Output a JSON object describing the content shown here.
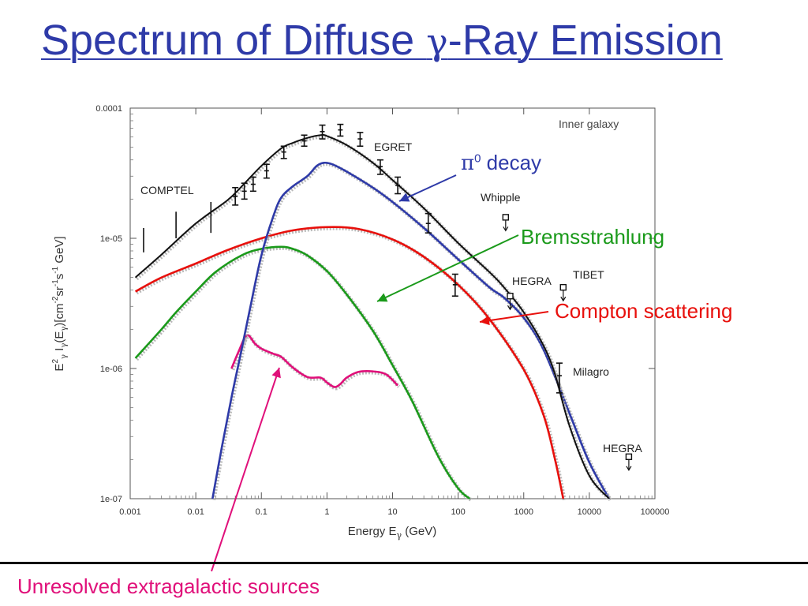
{
  "slide": {
    "title_before": "Spectrum of Diffuse ",
    "title_symbol": "γ",
    "title_after": "-Ray Emission"
  },
  "annotations": {
    "pi0_symbol": "π",
    "pi0_superscript": "0",
    "pi0_text": " decay",
    "bremsstrahlung": "Bremsstrahlung",
    "compton": "Compton scattering",
    "unresolved": "Unresolved extragalactic sources"
  },
  "colors": {
    "title": "#2e3aa8",
    "total": "#111111",
    "pi0": "#2e3aa8",
    "compton": "#e8100c",
    "brems": "#1a9a1a",
    "unresolved": "#e0107a"
  },
  "chart_data": {
    "type": "line",
    "xlabel": "Energy E",
    "xlabel_sub": "γ",
    "xlabel_unit": " (GeV)",
    "ylabel_pre": "E",
    "ylabel_sup": "2",
    "ylabel_sub": "γ",
    "ylabel_mid": " I",
    "ylabel_sub2": "γ",
    "ylabel_post": "(E",
    "ylabel_post2": ")[cm",
    "ylabel_exp1": "-2",
    "ylabel_sr": "sr",
    "ylabel_exp2": "-1",
    "ylabel_s": "s",
    "ylabel_exp3": "-1",
    "ylabel_end": " GeV]",
    "xscale": "log",
    "yscale": "log",
    "xlim": [
      0.001,
      100000
    ],
    "ylim": [
      1e-07,
      0.0001
    ],
    "x_ticks": [
      {
        "value": 0.001,
        "label": "0.001"
      },
      {
        "value": 0.01,
        "label": "0.01"
      },
      {
        "value": 0.1,
        "label": "0.1"
      },
      {
        "value": 1,
        "label": "1"
      },
      {
        "value": 10,
        "label": "10"
      },
      {
        "value": 100,
        "label": "100"
      },
      {
        "value": 1000,
        "label": "1000"
      },
      {
        "value": 10000,
        "label": "10000"
      },
      {
        "value": 100000,
        "label": "100000"
      }
    ],
    "y_ticks": [
      {
        "value": 0.0001,
        "label": "0.0001"
      },
      {
        "value": 1e-05,
        "label": "1e-05"
      },
      {
        "value": 1e-06,
        "label": "1e-06"
      },
      {
        "value": 1e-07,
        "label": "1e-07"
      }
    ],
    "grid": false,
    "panel_label": "Inner galaxy",
    "series": [
      {
        "name": "Total",
        "key": "total",
        "x": [
          0.0012,
          0.003,
          0.01,
          0.03,
          0.05,
          0.1,
          0.2,
          0.3,
          0.5,
          0.8,
          1,
          2,
          5,
          10,
          30,
          100,
          300,
          500,
          1000,
          2000,
          3000,
          5000,
          10000,
          20000
        ],
        "y": [
          5e-06,
          7.5e-06,
          1.3e-05,
          1.95e-05,
          2.5e-05,
          3.6e-05,
          4.9e-05,
          5.4e-05,
          5.9e-05,
          6.2e-05,
          6.1e-05,
          5.2e-05,
          3.8e-05,
          2.8e-05,
          1.7e-05,
          9.2e-06,
          5.5e-06,
          4.2e-06,
          2.7e-06,
          1.5e-06,
          9e-07,
          3.6e-07,
          1.5e-07,
          1e-07
        ]
      },
      {
        "name": "π0 decay",
        "key": "pi0",
        "x": [
          0.018,
          0.025,
          0.035,
          0.05,
          0.07,
          0.1,
          0.15,
          0.2,
          0.3,
          0.5,
          0.7,
          0.9,
          1.2,
          2,
          5,
          10,
          30,
          100,
          300,
          500,
          1000,
          2000,
          5000,
          10000,
          20000
        ],
        "y": [
          1e-07,
          2.5e-07,
          6e-07,
          1.4e-06,
          3.2e-06,
          7.4e-06,
          1.45e-05,
          2.05e-05,
          2.5e-05,
          3e-05,
          3.6e-05,
          3.8e-05,
          3.7e-05,
          3.25e-05,
          2.45e-05,
          1.9e-05,
          1.2e-05,
          6.9e-06,
          4.2e-06,
          3.5e-06,
          2.45e-06,
          1.4e-06,
          4.5e-07,
          1.9e-07,
          1e-07
        ]
      },
      {
        "name": "Compton scattering",
        "key": "compton",
        "x": [
          0.0012,
          0.003,
          0.01,
          0.03,
          0.1,
          0.3,
          1,
          3,
          10,
          30,
          100,
          300,
          1000,
          2000,
          3000,
          4000
        ],
        "y": [
          3.9e-06,
          5e-06,
          6.4e-06,
          8.1e-06,
          1e-05,
          1.15e-05,
          1.22e-05,
          1.18e-05,
          9.8e-06,
          7.2e-06,
          4.4e-06,
          2.4e-06,
          9.8e-07,
          4.4e-07,
          2e-07,
          1e-07
        ]
      },
      {
        "name": "Bremsstrahlung",
        "key": "brems",
        "x": [
          0.0012,
          0.003,
          0.005,
          0.01,
          0.02,
          0.05,
          0.1,
          0.2,
          0.3,
          0.5,
          1,
          2,
          5,
          10,
          20,
          50,
          100,
          150
        ],
        "y": [
          1.2e-06,
          2e-06,
          2.7e-06,
          3.9e-06,
          5.5e-06,
          7.4e-06,
          8.3e-06,
          8.6e-06,
          8.3e-06,
          7.4e-06,
          5.6e-06,
          3.7e-06,
          1.95e-06,
          1.06e-06,
          5.6e-07,
          2.1e-07,
          1.2e-07,
          1e-07
        ]
      },
      {
        "name": "Unresolved extragalactic sources",
        "key": "unresolved",
        "x": [
          0.035,
          0.045,
          0.06,
          0.08,
          0.1,
          0.15,
          0.2,
          0.3,
          0.5,
          0.8,
          1,
          1.3,
          1.6,
          2,
          3,
          5,
          8,
          12
        ],
        "y": [
          1e-06,
          1.35e-06,
          1.8e-06,
          1.55e-06,
          1.42e-06,
          1.3e-06,
          1.23e-06,
          1.02e-06,
          8.6e-07,
          8.5e-07,
          7.8e-07,
          7.2e-07,
          7.6e-07,
          8.5e-07,
          9.4e-07,
          9.5e-07,
          9e-07,
          7.4e-07
        ]
      }
    ],
    "measurements": [
      {
        "instrument": "COMPTEL",
        "label": "COMPTEL",
        "points": [
          {
            "x": 0.0016,
            "y_low": 7.8e-06,
            "y_high": 1.2e-05
          },
          {
            "x": 0.005,
            "y_low": 1e-05,
            "y_high": 1.6e-05
          },
          {
            "x": 0.017,
            "y_low": 1.1e-05,
            "y_high": 1.9e-05
          }
        ]
      },
      {
        "instrument": "EGRET",
        "label": "EGRET",
        "points": [
          {
            "x": 0.04,
            "y": 2.1e-05,
            "y_low": 1.8e-05,
            "y_high": 2.45e-05
          },
          {
            "x": 0.055,
            "y": 2.3e-05,
            "y_low": 2e-05,
            "y_high": 2.65e-05
          },
          {
            "x": 0.075,
            "y": 2.6e-05,
            "y_low": 2.3e-05,
            "y_high": 2.95e-05
          },
          {
            "x": 0.12,
            "y": 3.3e-05,
            "y_low": 2.9e-05,
            "y_high": 3.7e-05
          },
          {
            "x": 0.22,
            "y": 4.6e-05,
            "y_low": 4.1e-05,
            "y_high": 5.1e-05
          },
          {
            "x": 0.45,
            "y": 5.6e-05,
            "y_low": 5.1e-05,
            "y_high": 6.2e-05
          },
          {
            "x": 0.85,
            "y": 6.6e-05,
            "y_low": 5.8e-05,
            "y_high": 7.4e-05
          },
          {
            "x": 1.6,
            "y": 6.8e-05,
            "y_low": 6.1e-05,
            "y_high": 7.5e-05
          },
          {
            "x": 3.2,
            "y": 5.8e-05,
            "y_low": 5.1e-05,
            "y_high": 6.5e-05
          },
          {
            "x": 6.5,
            "y": 3.55e-05,
            "y_low": 3.1e-05,
            "y_high": 4e-05
          },
          {
            "x": 12,
            "y": 2.55e-05,
            "y_low": 2.2e-05,
            "y_high": 2.95e-05
          },
          {
            "x": 35,
            "y": 1.3e-05,
            "y_low": 1.1e-05,
            "y_high": 1.55e-05
          },
          {
            "x": 90,
            "y": 4.4e-06,
            "y_low": 3.6e-06,
            "y_high": 5.3e-06
          }
        ]
      },
      {
        "instrument": "Whipple",
        "label": "Whipple",
        "upper_limit": true,
        "points": [
          {
            "x": 530,
            "y": 1.45e-05
          }
        ]
      },
      {
        "instrument": "HEGRA",
        "label": "HEGRA",
        "upper_limit": true,
        "points": [
          {
            "x": 620,
            "y": 3.6e-06
          }
        ]
      },
      {
        "instrument": "TIBET",
        "label": "TIBET",
        "upper_limit": true,
        "points": [
          {
            "x": 4000,
            "y": 4.2e-06
          }
        ]
      },
      {
        "instrument": "Milagro",
        "label": "Milagro",
        "points": [
          {
            "x": 3500,
            "y": 8.8e-07,
            "y_low": 6.5e-07,
            "y_high": 1.1e-06
          }
        ]
      },
      {
        "instrument": "HEGRA",
        "label": "HEGRA",
        "upper_limit": true,
        "points": [
          {
            "x": 40000,
            "y": 2.1e-07
          }
        ]
      }
    ]
  }
}
